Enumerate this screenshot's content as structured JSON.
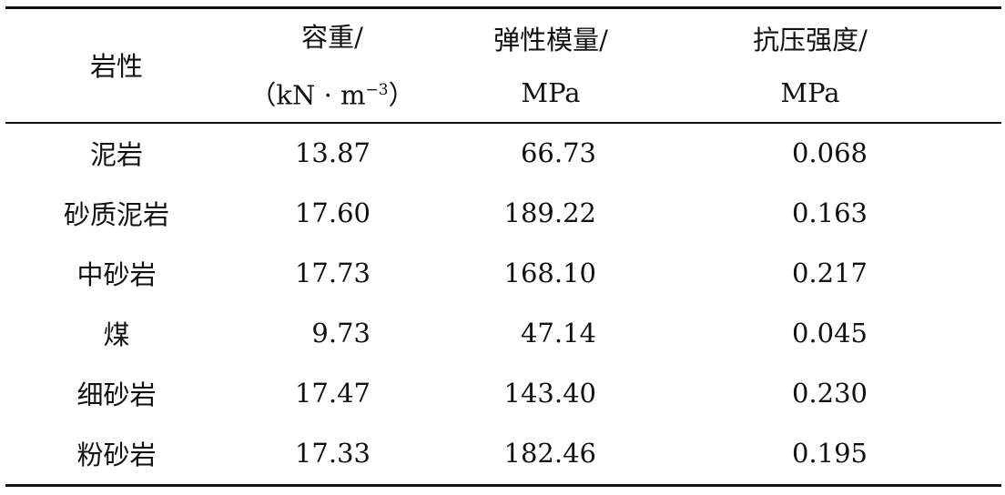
{
  "table": {
    "headers": [
      {
        "line1": "岩性",
        "line2": ""
      },
      {
        "line1": "容重/",
        "line2_pre": "（kN · m",
        "line2_sup": "−3",
        "line2_post": "）"
      },
      {
        "line1": "弹性模量/",
        "line2": "MPa"
      },
      {
        "line1": "抗压强度/",
        "line2": "MPa"
      }
    ],
    "rows": [
      [
        "泥岩",
        "13.87",
        "66.73",
        "0.068"
      ],
      [
        "砂质泥岩",
        "17.60",
        "189.22",
        "0.163"
      ],
      [
        "中砂岩",
        "17.73",
        "168.10",
        "0.217"
      ],
      [
        "煤",
        "9.73",
        "47.14",
        "0.045"
      ],
      [
        "细砂岩",
        "17.47",
        "143.40",
        "0.230"
      ],
      [
        "粉砂岩",
        "17.33",
        "182.46",
        "0.195"
      ]
    ]
  }
}
